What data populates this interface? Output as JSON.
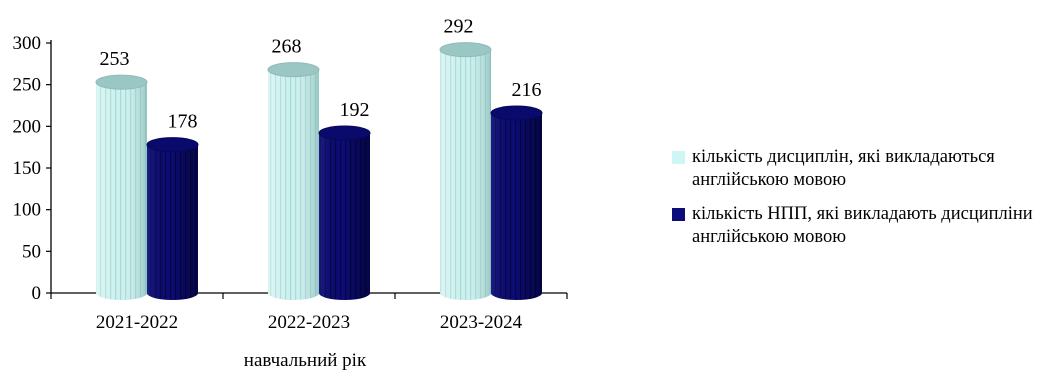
{
  "chart_data": {
    "type": "bar",
    "categories": [
      "2021-2022",
      "2022-2023",
      "2023-2024"
    ],
    "series": [
      {
        "name": "кількість дисциплін, які викладаються англійською мовою",
        "values": [
          253,
          268,
          292
        ],
        "color": "#cdf6f4"
      },
      {
        "name": "кількість НПП, які викладають дисципліни англійською мовою",
        "values": [
          178,
          192,
          216
        ],
        "color": "#0d0d7a"
      }
    ],
    "title": "",
    "xlabel": "навчальний рік",
    "ylabel": "",
    "ylim": [
      0,
      300
    ],
    "yticks": [
      "0",
      "50",
      "100",
      "150",
      "200",
      "250",
      "300"
    ],
    "grid": false,
    "legend_position": "right",
    "style": "3d-cylinder"
  }
}
